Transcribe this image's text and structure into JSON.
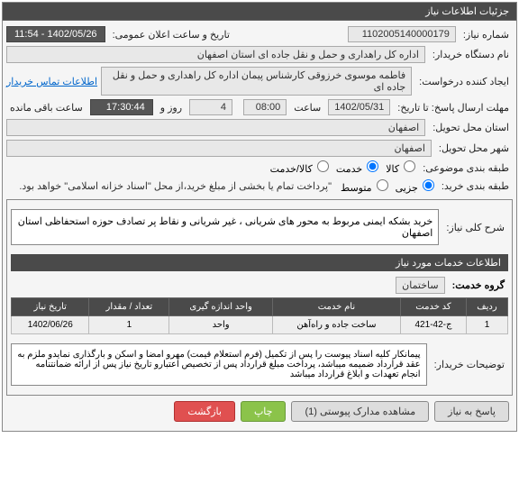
{
  "panel_title": "جزئیات اطلاعات نیاز",
  "fields": {
    "need_no_label": "شماره نیاز:",
    "need_no": "1102005140000179",
    "pub_date_label": "تاریخ و ساعت اعلان عمومی:",
    "pub_date": "1402/05/26 - 11:54",
    "buyer_label": "نام دستگاه خریدار:",
    "buyer": "اداره کل راهداری و حمل و نقل جاده ای استان اصفهان",
    "creator_label": "ایجاد کننده درخواست:",
    "creator": "فاطمه موسوی خرزوقی کارشناس پیمان اداره کل راهداری و حمل و نقل جاده ای",
    "contact_link": "اطلاعات تماس خریدار",
    "deadline_label": "مهلت ارسال پاسخ: تا تاریخ:",
    "deadline_date": "1402/05/31",
    "time_label": "ساعت",
    "deadline_time": "08:00",
    "days": "4",
    "days_label": "روز و",
    "remain": "17:30:44",
    "remain_label": "ساعت باقی مانده",
    "province_label": "استان محل تحویل:",
    "province": "اصفهان",
    "city_label": "شهر محل تحویل:",
    "city": "اصفهان",
    "class_label": "طبقه بندی موضوعی:",
    "class_goods": "کالا",
    "class_service": "خدمت",
    "class_both": "کالا/خدمت",
    "budget_label": "طبقه بندی خرید:",
    "budget_small": "جزیی",
    "budget_mid": "متوسط",
    "budget_note": "\"پرداخت تمام یا بخشی از مبلغ خرید،از محل \"اسناد خزانه اسلامی\" خواهد بود.",
    "desc_label": "شرح کلی نیاز:",
    "desc": "خرید بشکه ایمنی مربوط به محور های شریانی ، غیر شریانی و نقاط پر تصادف حوزه استحفاظی استان اصفهان",
    "info_header": "اطلاعات خدمات مورد نیاز",
    "group_label": "گروه خدمت:",
    "group_value": "ساختمان",
    "buyer_notes_label": "توضیحات خریدار:",
    "buyer_notes": "پیمانکار کلیه اسناد پیوست را پس از تکمیل (فرم استعلام قیمت) مهرو امضا و اسکن و بارگذاری نمایدو ملزم به عقد قرارداد ضمیمه میباشد، پرداخت مبلغ قرارداد پس از تخصیص اعتبارو تاریخ نیاز پس از ارائه ضمانتنامه انجام تعهدات و ابلاغ قرارداد میباشد"
  },
  "table": {
    "columns": [
      "ردیف",
      "کد خدمت",
      "نام خدمت",
      "واحد اندازه گیری",
      "تعداد / مقدار",
      "تاریخ نیاز"
    ],
    "rows": [
      [
        "1",
        "ج-42-421",
        "ساخت جاده و راه‌آهن",
        "واحد",
        "1",
        "1402/06/26"
      ]
    ]
  },
  "buttons": {
    "respond": "پاسخ به نیاز",
    "attach": "مشاهده مدارک پیوستی (1)",
    "print": "چاپ",
    "back": "بازگشت"
  }
}
